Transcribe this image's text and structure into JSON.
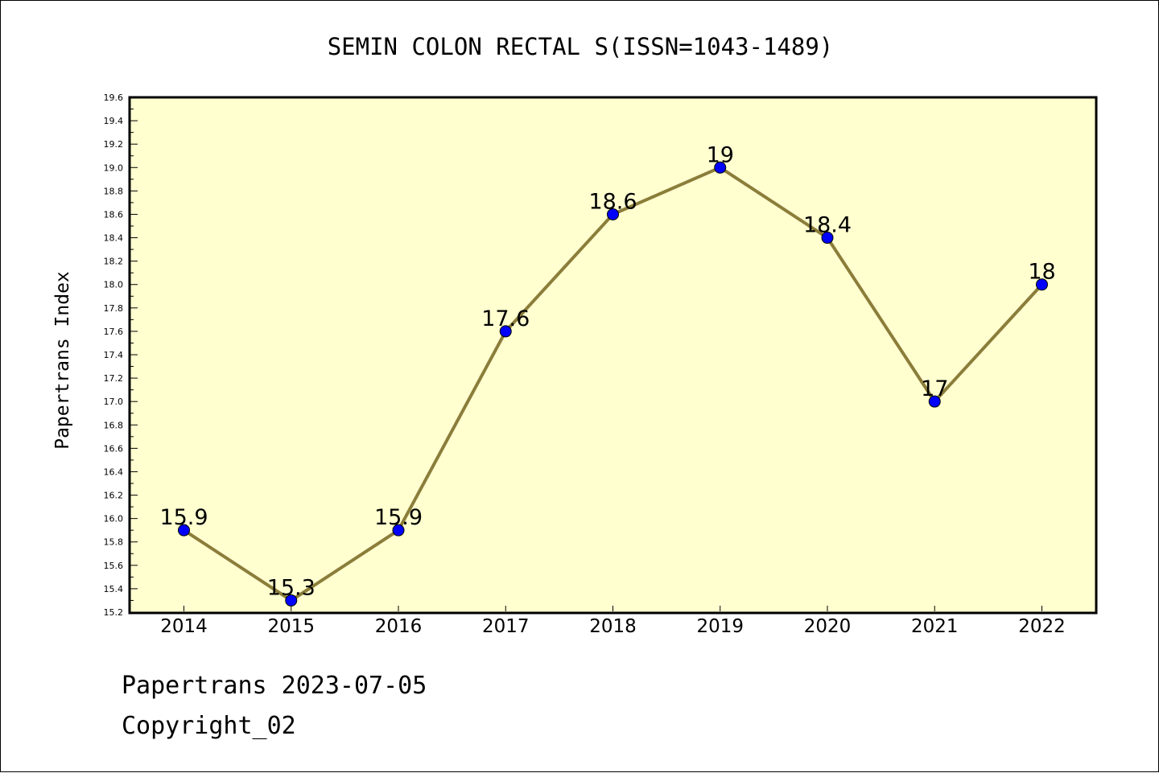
{
  "chart_data": {
    "type": "line",
    "title": "SEMIN COLON RECTAL S(ISSN=1043-1489)",
    "xlabel": "",
    "ylabel": "Papertrans Index",
    "categories": [
      "2014",
      "2015",
      "2016",
      "2017",
      "2018",
      "2019",
      "2020",
      "2021",
      "2022"
    ],
    "series": [
      {
        "values": [
          15.9,
          15.3,
          15.9,
          17.6,
          18.6,
          19,
          18.4,
          17,
          18
        ],
        "data_labels": [
          "15.9",
          "15.3",
          "15.9",
          "17.6",
          "18.6",
          "19",
          "18.4",
          "17",
          "18"
        ]
      }
    ],
    "ylim": [
      15.2,
      19.6
    ],
    "y_ticks": [
      "15.2",
      "15.4",
      "15.6",
      "15.8",
      "16.0",
      "16.2",
      "16.4",
      "16.6",
      "16.8",
      "17.0",
      "17.2",
      "17.4",
      "17.6",
      "17.8",
      "18.0",
      "18.2",
      "18.4",
      "18.6",
      "18.8",
      "19.0",
      "19.2",
      "19.4",
      "19.6"
    ],
    "y_minor_step": 0.1,
    "grid": false,
    "legend": "none",
    "colors": {
      "plot_background": "#ffffd0",
      "line": "#8b7d3a",
      "marker": "#0000ff"
    }
  },
  "footer": {
    "line1": "Papertrans 2023-07-05",
    "line2": "Copyright_02"
  }
}
